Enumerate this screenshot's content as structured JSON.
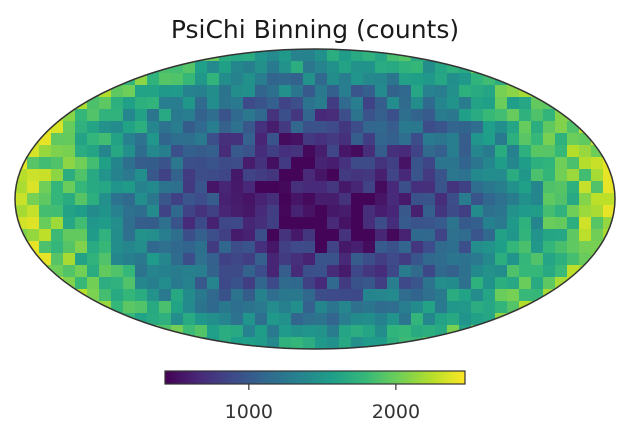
{
  "chart_data": {
    "type": "heatmap",
    "title": "PsiChi Binning (counts)",
    "projection": "mollweide",
    "colormap": "viridis",
    "colormap_stops": [
      "#440154",
      "#482878",
      "#3e4989",
      "#31688e",
      "#26828e",
      "#1f9e89",
      "#35b779",
      "#6ece58",
      "#b5de2b",
      "#fde725"
    ],
    "colorbar": {
      "range": [
        430,
        2470
      ],
      "ticks": [
        1000,
        2000
      ],
      "tick_labels": [
        "1000",
        "2000"
      ]
    },
    "description_of_field": "counts are lowest (~450) near the map centre and rise toward the left and right limbs (~2400)",
    "value_range": [
      450,
      2400
    ]
  }
}
